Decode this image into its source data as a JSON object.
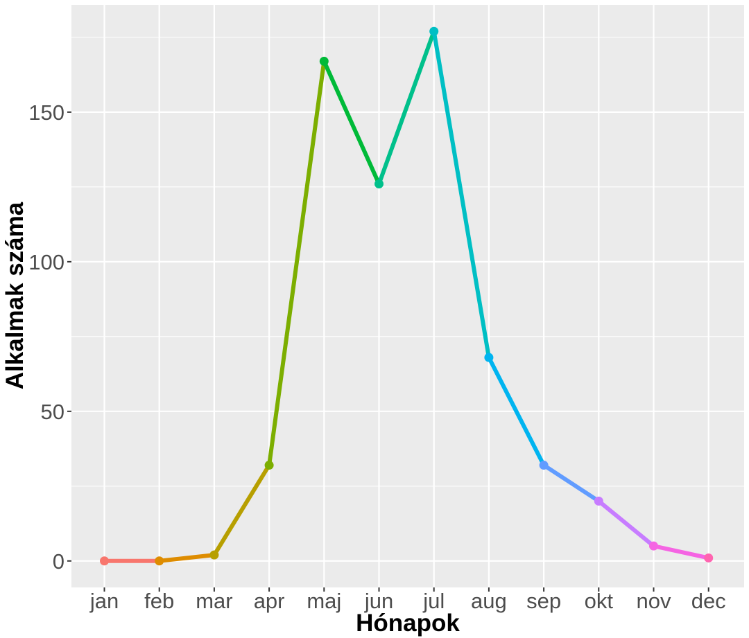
{
  "chart_data": {
    "type": "line",
    "title": "",
    "xlabel": "Hónapok",
    "ylabel": "Alkalmak száma",
    "categories": [
      "jan",
      "feb",
      "mar",
      "apr",
      "maj",
      "jun",
      "jul",
      "aug",
      "sep",
      "okt",
      "nov",
      "dec"
    ],
    "values": [
      0,
      0,
      2,
      32,
      167,
      126,
      177,
      68,
      32,
      20,
      5,
      1
    ],
    "ylim": [
      -8.85,
      185.85
    ],
    "yticks": [
      0,
      50,
      100,
      150
    ],
    "grid": true,
    "legend": "none",
    "colors": [
      "#F8766D",
      "#DE8C00",
      "#B79F00",
      "#7CAE00",
      "#00BA38",
      "#00C08B",
      "#00BFC4",
      "#00B4F0",
      "#619CFF",
      "#C77CFF",
      "#F564E3",
      "#FF64B0"
    ],
    "panel_background": "#EBEBEB",
    "grid_color": "#FFFFFF"
  }
}
